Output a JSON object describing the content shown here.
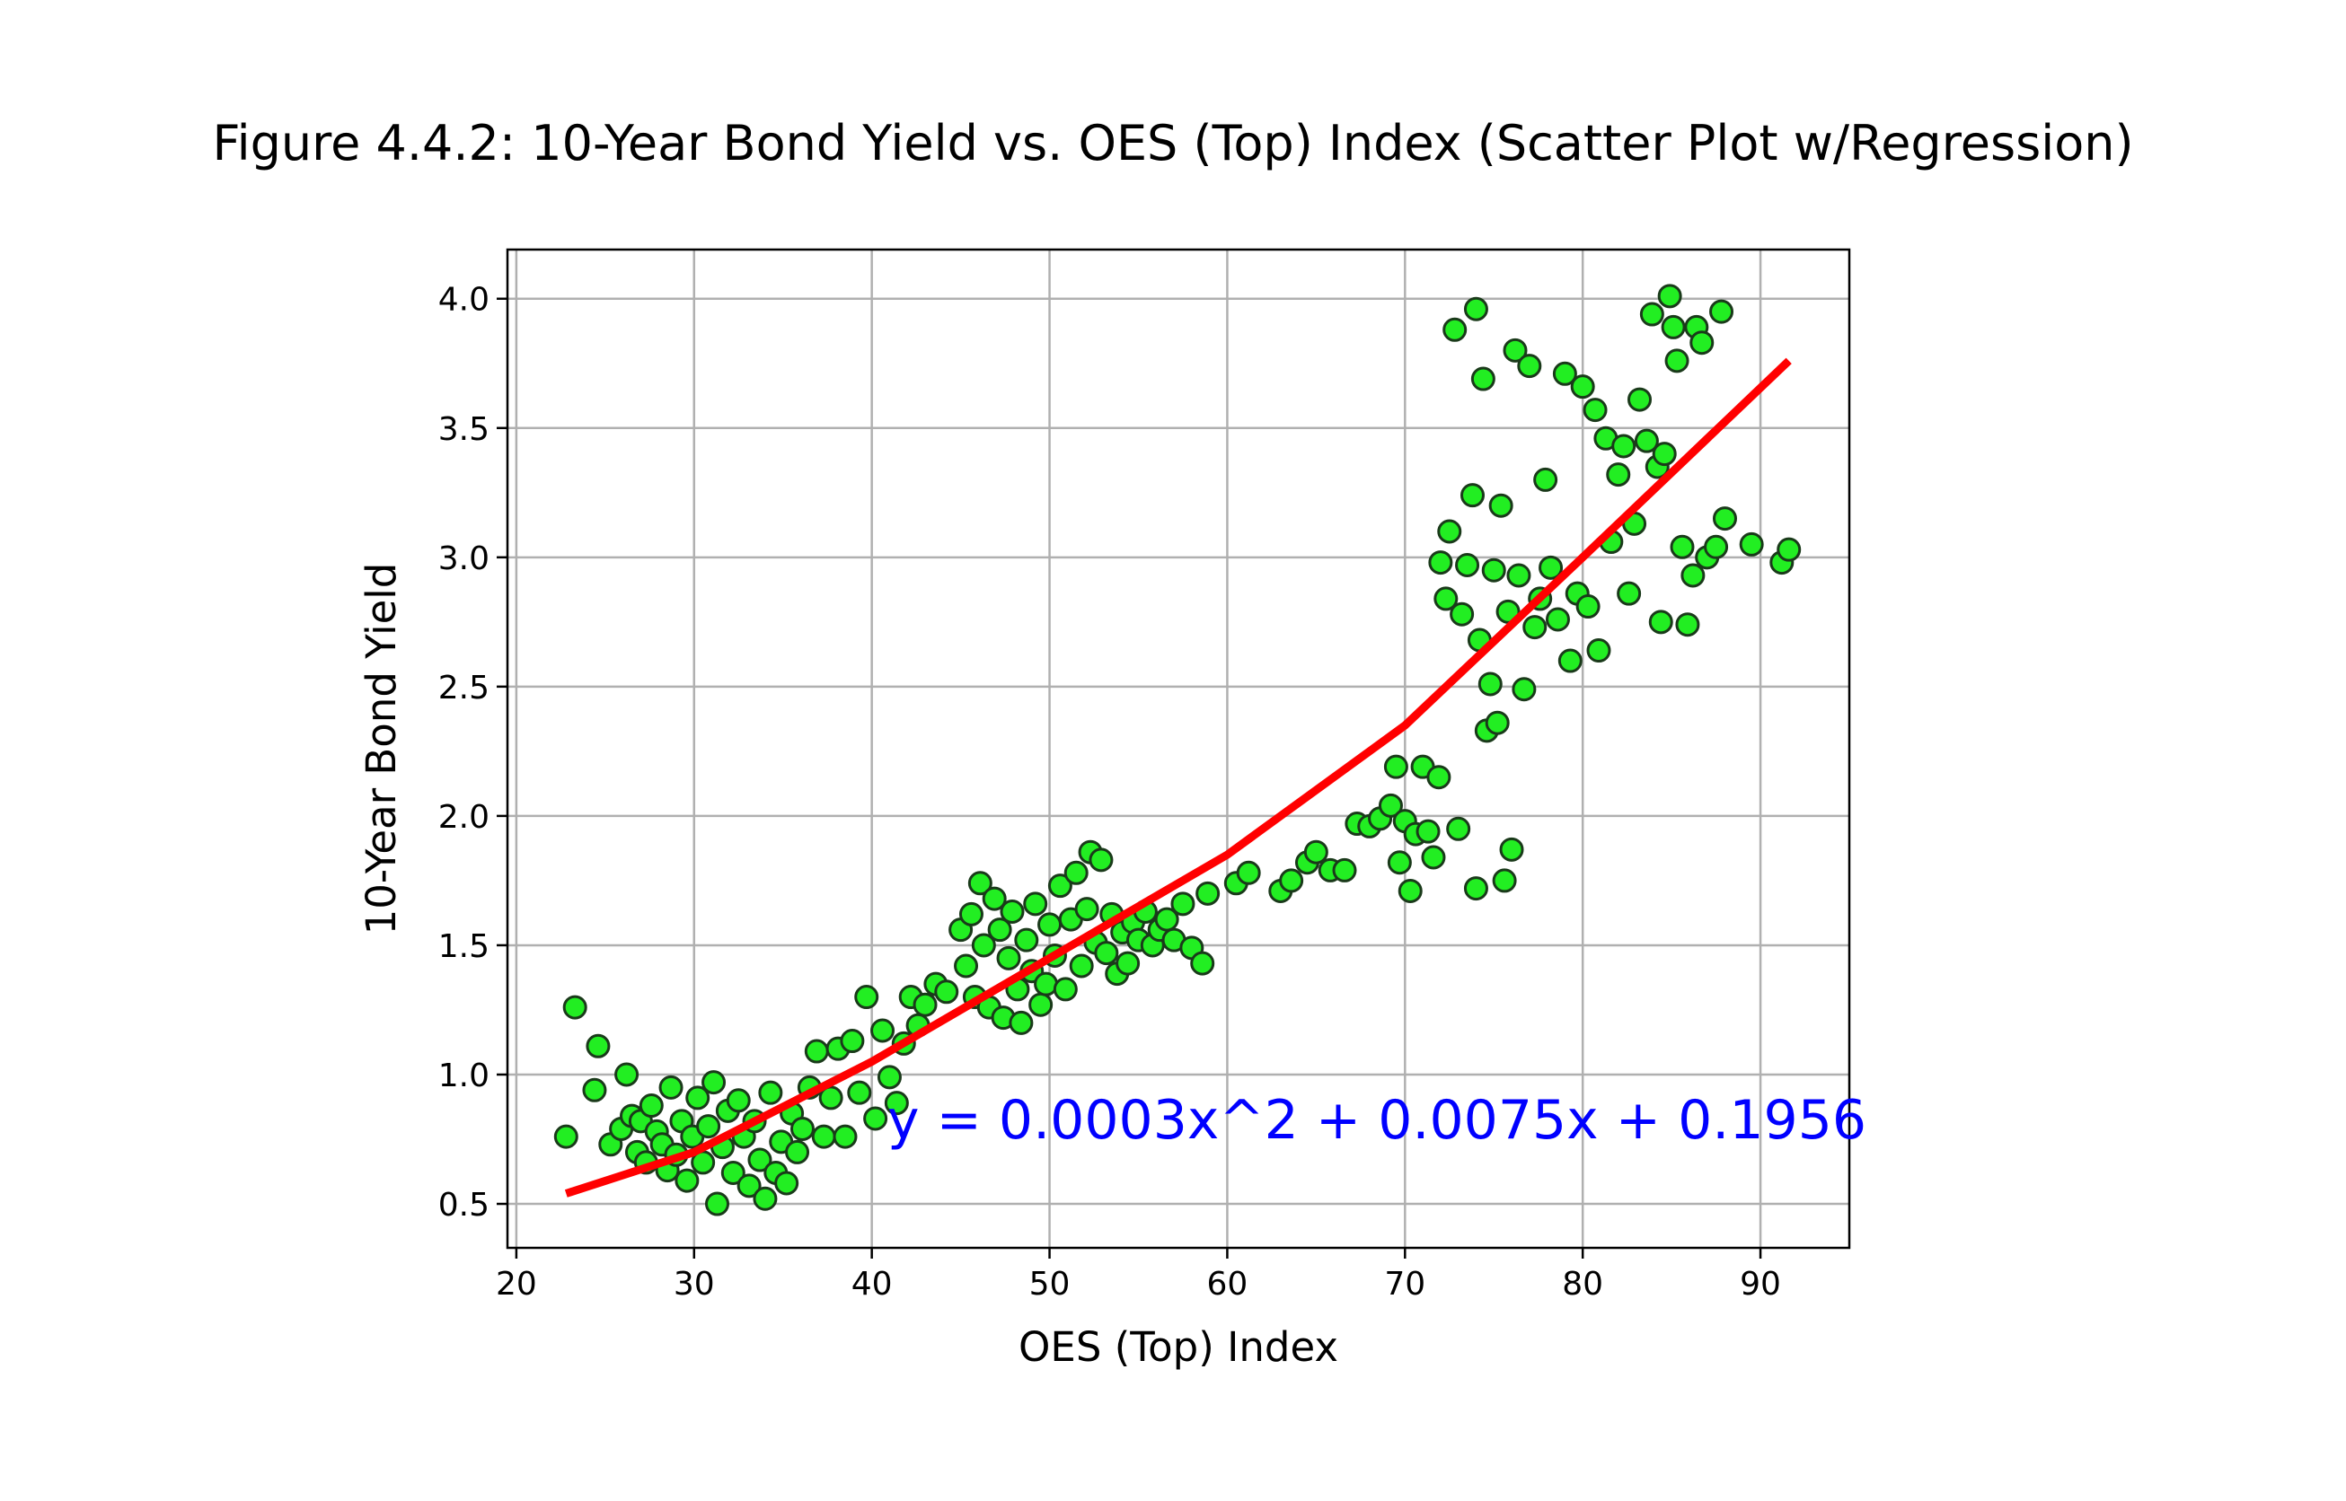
{
  "chart_data": {
    "type": "scatter",
    "title": "Figure 4.4.2: 10-Year Bond Yield vs. OES (Top) Index (Scatter Plot w/Regression)",
    "xlabel": "OES (Top) Index",
    "ylabel": "10-Year Bond Yield",
    "xlim": [
      19.5,
      95
    ],
    "ylim": [
      0.33,
      4.19
    ],
    "xticks": [
      20,
      30,
      40,
      50,
      60,
      70,
      80,
      90
    ],
    "xtick_labels": [
      "20",
      "30",
      "40",
      "50",
      "60",
      "70",
      "80",
      "90"
    ],
    "yticks": [
      0.5,
      1.0,
      1.5,
      2.0,
      2.5,
      3.0,
      3.5,
      4.0
    ],
    "ytick_labels": [
      "0.5",
      "1.0",
      "1.5",
      "2.0",
      "2.5",
      "3.0",
      "3.5",
      "4.0"
    ],
    "grid": true,
    "colors": {
      "points": "#22ee22",
      "point_edge": "#1a3a1a",
      "fit": "#ff0000",
      "equation": "#0000ff",
      "grid": "#b0b0b0"
    },
    "series": [
      {
        "marker": "circle",
        "points": [
          [
            22.8,
            0.76
          ],
          [
            23.3,
            1.26
          ],
          [
            24.4,
            0.94
          ],
          [
            24.6,
            1.11
          ],
          [
            25.3,
            0.73
          ],
          [
            25.9,
            0.79
          ],
          [
            26.2,
            1.0
          ],
          [
            26.5,
            0.84
          ],
          [
            26.8,
            0.7
          ],
          [
            27.0,
            0.82
          ],
          [
            27.3,
            0.66
          ],
          [
            27.6,
            0.88
          ],
          [
            27.9,
            0.78
          ],
          [
            28.2,
            0.73
          ],
          [
            28.5,
            0.63
          ],
          [
            28.7,
            0.95
          ],
          [
            29.0,
            0.69
          ],
          [
            29.3,
            0.82
          ],
          [
            29.6,
            0.59
          ],
          [
            29.9,
            0.76
          ],
          [
            30.2,
            0.91
          ],
          [
            30.5,
            0.66
          ],
          [
            30.8,
            0.8
          ],
          [
            31.1,
            0.97
          ],
          [
            31.3,
            0.5
          ],
          [
            31.6,
            0.72
          ],
          [
            31.9,
            0.86
          ],
          [
            32.2,
            0.62
          ],
          [
            32.5,
            0.9
          ],
          [
            32.8,
            0.76
          ],
          [
            33.1,
            0.57
          ],
          [
            33.4,
            0.82
          ],
          [
            33.7,
            0.67
          ],
          [
            34.0,
            0.52
          ],
          [
            34.3,
            0.93
          ],
          [
            34.6,
            0.62
          ],
          [
            34.9,
            0.74
          ],
          [
            35.2,
            0.58
          ],
          [
            35.5,
            0.85
          ],
          [
            35.8,
            0.7
          ],
          [
            36.1,
            0.79
          ],
          [
            36.5,
            0.95
          ],
          [
            36.9,
            1.09
          ],
          [
            37.3,
            0.76
          ],
          [
            37.7,
            0.91
          ],
          [
            38.1,
            1.1
          ],
          [
            38.5,
            0.76
          ],
          [
            38.9,
            1.13
          ],
          [
            39.3,
            0.93
          ],
          [
            39.7,
            1.3
          ],
          [
            40.2,
            0.83
          ],
          [
            40.6,
            1.17
          ],
          [
            41.0,
            0.99
          ],
          [
            41.4,
            0.89
          ],
          [
            41.8,
            1.12
          ],
          [
            42.2,
            1.3
          ],
          [
            42.6,
            1.19
          ],
          [
            43.0,
            1.27
          ],
          [
            43.6,
            1.35
          ],
          [
            44.2,
            1.32
          ],
          [
            45.0,
            1.56
          ],
          [
            45.3,
            1.42
          ],
          [
            45.6,
            1.62
          ],
          [
            45.8,
            1.3
          ],
          [
            46.1,
            1.74
          ],
          [
            46.3,
            1.5
          ],
          [
            46.6,
            1.26
          ],
          [
            46.9,
            1.68
          ],
          [
            47.2,
            1.56
          ],
          [
            47.4,
            1.22
          ],
          [
            47.7,
            1.45
          ],
          [
            47.9,
            1.63
          ],
          [
            48.2,
            1.33
          ],
          [
            48.4,
            1.2
          ],
          [
            48.7,
            1.52
          ],
          [
            49.0,
            1.4
          ],
          [
            49.2,
            1.66
          ],
          [
            49.5,
            1.27
          ],
          [
            49.8,
            1.35
          ],
          [
            50.0,
            1.58
          ],
          [
            50.3,
            1.46
          ],
          [
            50.6,
            1.73
          ],
          [
            50.9,
            1.33
          ],
          [
            51.2,
            1.6
          ],
          [
            51.5,
            1.78
          ],
          [
            51.8,
            1.42
          ],
          [
            52.1,
            1.64
          ],
          [
            52.3,
            1.86
          ],
          [
            52.6,
            1.51
          ],
          [
            52.9,
            1.83
          ],
          [
            53.2,
            1.47
          ],
          [
            53.5,
            1.62
          ],
          [
            53.8,
            1.39
          ],
          [
            54.1,
            1.55
          ],
          [
            54.4,
            1.43
          ],
          [
            54.7,
            1.59
          ],
          [
            55.0,
            1.52
          ],
          [
            55.4,
            1.63
          ],
          [
            55.8,
            1.5
          ],
          [
            56.2,
            1.56
          ],
          [
            56.6,
            1.6
          ],
          [
            57.0,
            1.52
          ],
          [
            57.5,
            1.66
          ],
          [
            58.0,
            1.49
          ],
          [
            58.6,
            1.43
          ],
          [
            58.9,
            1.7
          ],
          [
            60.5,
            1.74
          ],
          [
            61.2,
            1.78
          ],
          [
            63.0,
            1.71
          ],
          [
            63.6,
            1.75
          ],
          [
            64.5,
            1.82
          ],
          [
            65.0,
            1.86
          ],
          [
            65.8,
            1.79
          ],
          [
            66.6,
            1.79
          ],
          [
            67.3,
            1.97
          ],
          [
            68.0,
            1.96
          ],
          [
            68.6,
            1.99
          ],
          [
            69.2,
            2.04
          ],
          [
            69.5,
            2.19
          ],
          [
            69.7,
            1.82
          ],
          [
            70.0,
            1.98
          ],
          [
            70.3,
            1.71
          ],
          [
            70.6,
            1.93
          ],
          [
            71.0,
            2.19
          ],
          [
            71.3,
            1.94
          ],
          [
            71.6,
            1.84
          ],
          [
            71.9,
            2.15
          ],
          [
            72.0,
            2.98
          ],
          [
            72.3,
            2.84
          ],
          [
            72.5,
            3.1
          ],
          [
            72.8,
            3.88
          ],
          [
            73.0,
            1.95
          ],
          [
            73.2,
            2.78
          ],
          [
            73.5,
            2.97
          ],
          [
            73.8,
            3.24
          ],
          [
            74.0,
            3.96
          ],
          [
            74.0,
            1.72
          ],
          [
            74.2,
            2.68
          ],
          [
            74.4,
            3.69
          ],
          [
            74.6,
            2.33
          ],
          [
            74.8,
            2.51
          ],
          [
            75.0,
            2.95
          ],
          [
            75.2,
            2.36
          ],
          [
            75.4,
            3.2
          ],
          [
            75.6,
            1.75
          ],
          [
            75.8,
            2.79
          ],
          [
            76.0,
            1.87
          ],
          [
            76.2,
            3.8
          ],
          [
            76.4,
            2.93
          ],
          [
            76.7,
            2.49
          ],
          [
            77.0,
            3.74
          ],
          [
            77.3,
            2.73
          ],
          [
            77.6,
            2.84
          ],
          [
            77.9,
            3.3
          ],
          [
            78.2,
            2.96
          ],
          [
            78.6,
            2.76
          ],
          [
            79.0,
            3.71
          ],
          [
            79.3,
            2.6
          ],
          [
            79.7,
            2.86
          ],
          [
            80.0,
            3.66
          ],
          [
            80.3,
            2.81
          ],
          [
            80.7,
            3.57
          ],
          [
            80.9,
            2.64
          ],
          [
            81.3,
            3.46
          ],
          [
            81.6,
            3.06
          ],
          [
            82.0,
            3.32
          ],
          [
            82.3,
            3.43
          ],
          [
            82.6,
            2.86
          ],
          [
            82.9,
            3.13
          ],
          [
            83.2,
            3.61
          ],
          [
            83.6,
            3.45
          ],
          [
            83.9,
            3.94
          ],
          [
            84.2,
            3.35
          ],
          [
            84.4,
            2.75
          ],
          [
            84.6,
            3.4
          ],
          [
            84.9,
            4.01
          ],
          [
            85.1,
            3.89
          ],
          [
            85.3,
            3.76
          ],
          [
            85.6,
            3.04
          ],
          [
            85.9,
            2.74
          ],
          [
            86.2,
            2.93
          ],
          [
            86.4,
            3.89
          ],
          [
            86.7,
            3.83
          ],
          [
            87.0,
            3.0
          ],
          [
            87.5,
            3.04
          ],
          [
            87.8,
            3.95
          ],
          [
            88.0,
            3.15
          ],
          [
            89.5,
            3.05
          ],
          [
            91.2,
            2.98
          ],
          [
            91.6,
            3.03
          ]
        ]
      }
    ],
    "fit": {
      "equation_label": "y = 0.0003x^2 + 0.0075x + 0.1956",
      "x_range": [
        22.8,
        91.6
      ],
      "points": [
        [
          22.8,
          0.54
        ],
        [
          30,
          0.7
        ],
        [
          40,
          1.05
        ],
        [
          50,
          1.45
        ],
        [
          60,
          1.85
        ],
        [
          70,
          2.35
        ],
        [
          80,
          3.0
        ],
        [
          91.6,
          3.76
        ]
      ]
    }
  }
}
